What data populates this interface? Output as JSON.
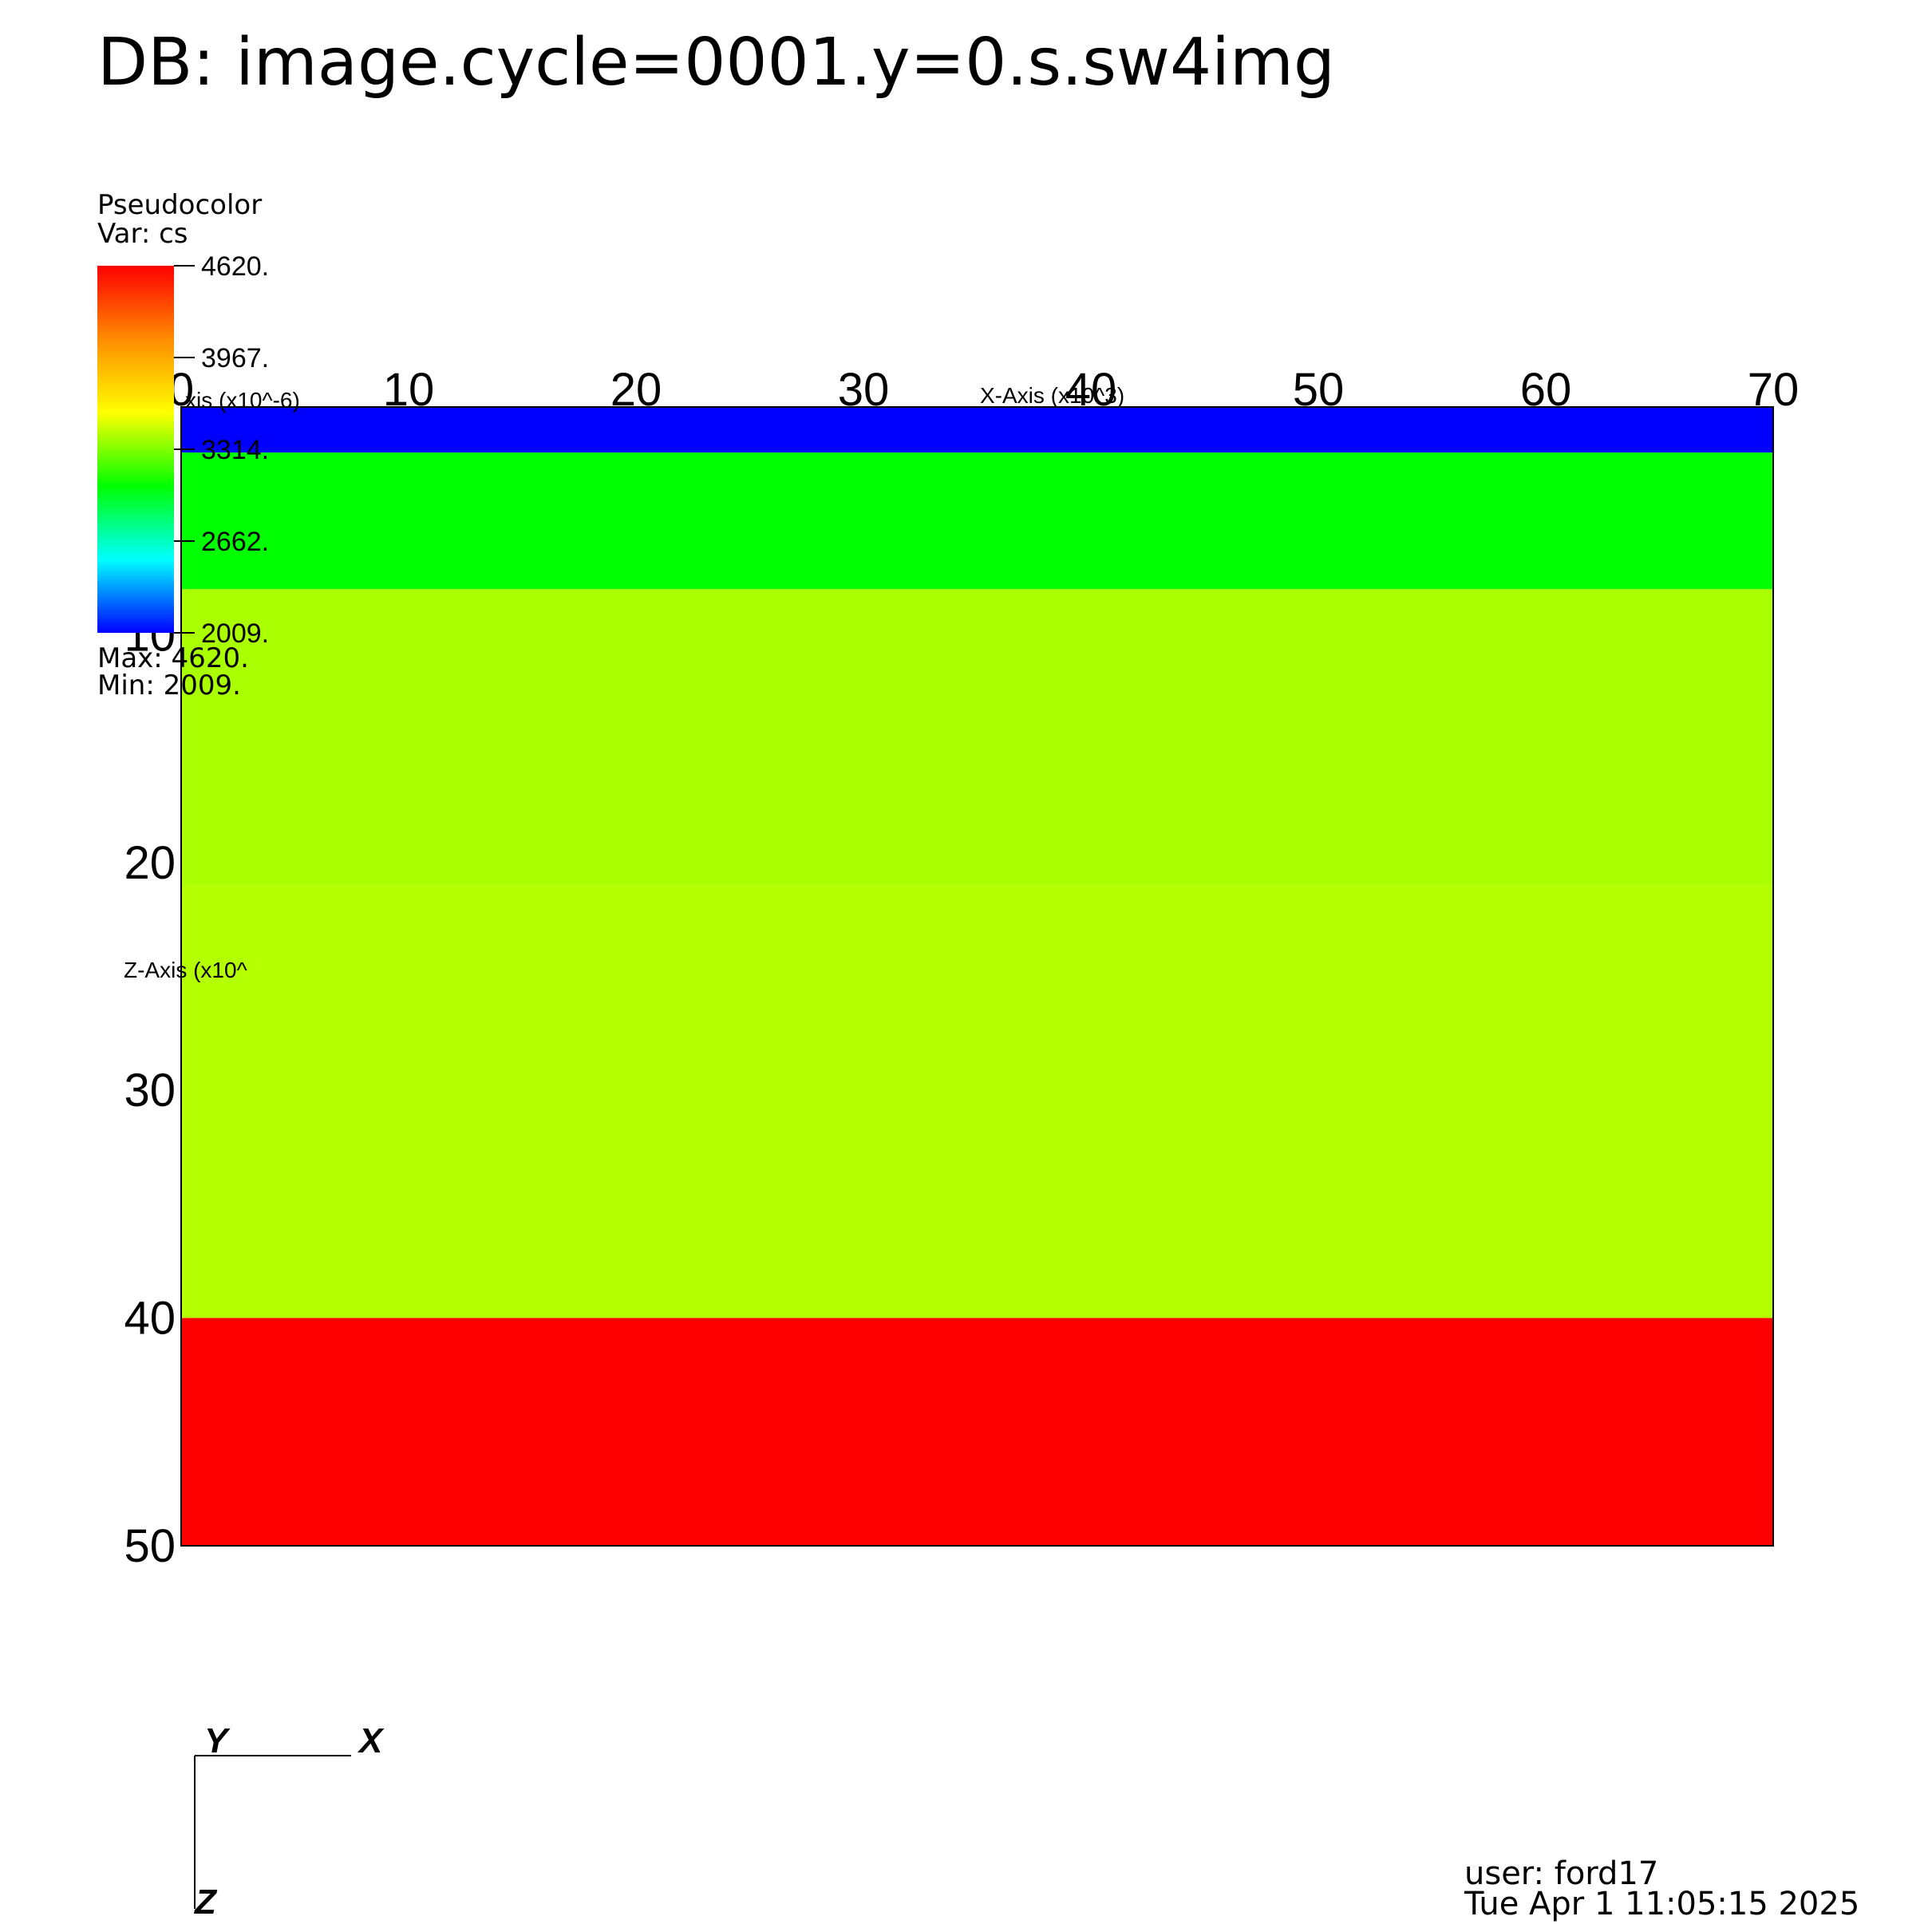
{
  "header": {
    "db_title": "DB: image.cycle=0001.y=0.s.sw4img"
  },
  "legend": {
    "plot_type": "Pseudocolor",
    "var_label": "Var: cs",
    "ticks": [
      "4620.",
      "3967.",
      "3314.",
      "2662.",
      "2009."
    ],
    "max_label": "Max:  4620.",
    "min_label": "Min:  2009.",
    "colormap": [
      "#ff0000",
      "#ff8c00",
      "#ffff00",
      "#00ff00",
      "#00ffff",
      "#0000ff"
    ]
  },
  "footer": {
    "user": "user: ford17",
    "date": "Tue Apr  1 11:05:15 2025"
  },
  "triad": {
    "y": "Y",
    "x": "X",
    "z": "Z"
  },
  "chart_data": {
    "type": "heatmap",
    "variable": "cs",
    "xlabel": "X-Axis (x10^3)",
    "ylabel": "Z-Axis (x10^",
    "ylabel_top": "xis (x10^-6)",
    "xlim": [
      0,
      70
    ],
    "ylim": [
      0,
      50
    ],
    "x_ticks": [
      "0",
      "10",
      "20",
      "30",
      "40",
      "50",
      "60",
      "70"
    ],
    "y_ticks": [
      "10",
      "20",
      "30",
      "40",
      "50"
    ],
    "value_range": [
      2009,
      4620
    ],
    "layers": [
      {
        "z_top": 0,
        "z_bottom": 2,
        "cs": 2009,
        "color": "#0000ff"
      },
      {
        "z_top": 2,
        "z_bottom": 8,
        "cs": 3314,
        "color": "#00ff00"
      },
      {
        "z_top": 8,
        "z_bottom": 21,
        "cs": 3750,
        "color": "#aaff00"
      },
      {
        "z_top": 21,
        "z_bottom": 40,
        "cs": 3850,
        "color": "#b4ff00"
      },
      {
        "z_top": 40,
        "z_bottom": 50,
        "cs": 4620,
        "color": "#ff0000"
      }
    ]
  }
}
